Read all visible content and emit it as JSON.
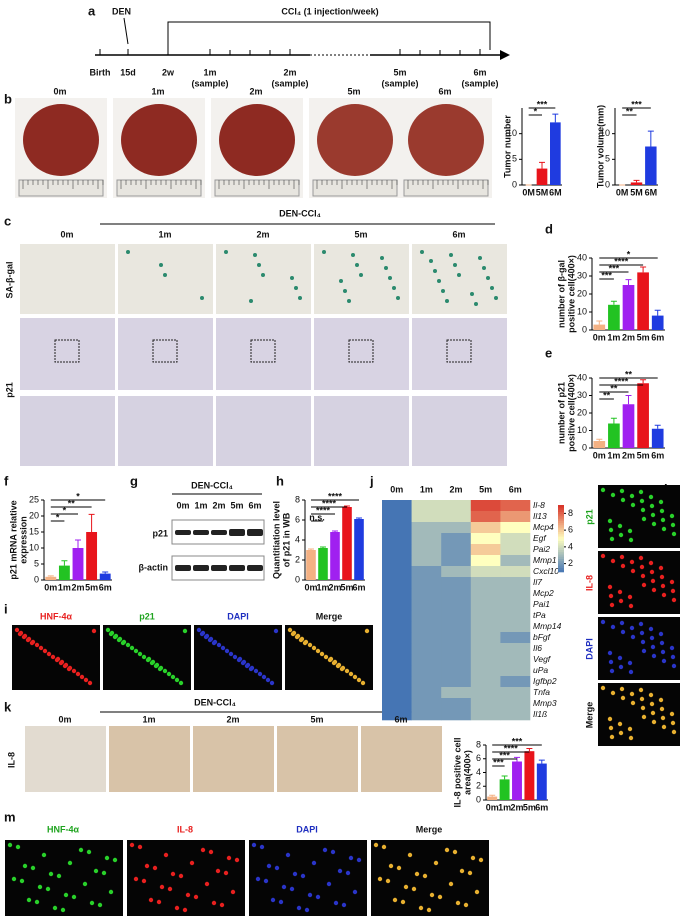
{
  "panel_letters": [
    "a",
    "b",
    "c",
    "d",
    "e",
    "f",
    "g",
    "h",
    "i",
    "j",
    "k",
    "l",
    "m"
  ],
  "timeline": {
    "title": "CCl₄ (1 injection/week)",
    "den": "DEN",
    "points": [
      {
        "time": "Birth"
      },
      {
        "time": "15d"
      },
      {
        "time": "2w"
      },
      {
        "time": "1m",
        "note": "(sample)"
      },
      {
        "time": "2m",
        "note": "(sample)"
      },
      {
        "time": "5m",
        "note": "(sample)"
      },
      {
        "time": "6m",
        "note": "(sample)"
      }
    ]
  },
  "panel_b": {
    "times": [
      "0m",
      "1m",
      "2m",
      "5m",
      "6m"
    ]
  },
  "panel_c": {
    "title": "DEN-CCl₄",
    "times": [
      "0m",
      "1m",
      "2m",
      "5m",
      "6m"
    ],
    "rows": [
      "SA-β-gal",
      "p21"
    ]
  },
  "panel_g": {
    "title": "DEN-CCl₄",
    "lanes": [
      "0m",
      "1m",
      "2m",
      "5m",
      "6m"
    ],
    "rows": [
      "p21",
      "β-actin"
    ]
  },
  "panel_i": {
    "labels": [
      "HNF-4α",
      "p21",
      "DAPI",
      "Merge"
    ]
  },
  "panel_k": {
    "title": "DEN-CCl₄",
    "times": [
      "0m",
      "1m",
      "2m",
      "5m",
      "6m"
    ],
    "row": "IL-8"
  },
  "panel_l": {
    "labels": [
      "p21",
      "IL-8",
      "DAPI",
      "Merge"
    ]
  },
  "panel_m": {
    "labels": [
      "HNF-4α",
      "IL-8",
      "DAPI",
      "Merge"
    ]
  },
  "chart_data": [
    {
      "type": "bar",
      "ylabel": [
        "Tumor number"
      ],
      "categories": [
        "0M",
        "5M",
        "6M"
      ],
      "values": [
        0,
        3.2,
        12.2
      ],
      "errors": [
        0,
        1.2,
        1.6
      ],
      "colors": [
        "#f4b183",
        "#e8141b",
        "#1f3be0"
      ],
      "ylim": [
        0,
        15
      ],
      "yticks": [
        0,
        5,
        10
      ],
      "annotations": [
        "*",
        "***"
      ]
    },
    {
      "type": "bar",
      "ylabel": [
        "Tumor volume(mm)"
      ],
      "categories": [
        "0M",
        "5M",
        "6M"
      ],
      "values": [
        0,
        0.5,
        7.5
      ],
      "errors": [
        0,
        0.4,
        3
      ],
      "colors": [
        "#f4b183",
        "#e8141b",
        "#1f3be0"
      ],
      "ylim": [
        0,
        15
      ],
      "yticks": [
        0,
        5,
        10
      ],
      "annotations": [
        "**",
        "***"
      ]
    },
    {
      "type": "bar",
      "ylabel": [
        "number of β-gal",
        "positive cell(400×)"
      ],
      "categories": [
        "0m",
        "1m",
        "2m",
        "5m",
        "6m"
      ],
      "values": [
        3,
        14,
        25,
        32,
        8
      ],
      "errors": [
        2,
        2,
        3,
        3,
        3
      ],
      "colors": [
        "#f4b183",
        "#22c322",
        "#a020f0",
        "#e8141b",
        "#1f3be0"
      ],
      "ylim": [
        0,
        40
      ],
      "yticks": [
        0,
        10,
        20,
        30,
        40
      ],
      "annotations": [
        "***",
        "***",
        "****",
        "*"
      ]
    },
    {
      "type": "bar",
      "ylabel": [
        "number of p21",
        "positive cell(400×)"
      ],
      "categories": [
        "0m",
        "1m",
        "2m",
        "5m",
        "6m"
      ],
      "values": [
        4,
        14,
        25,
        37,
        11
      ],
      "errors": [
        1,
        3,
        5,
        2,
        2
      ],
      "colors": [
        "#f4b183",
        "#22c322",
        "#a020f0",
        "#e8141b",
        "#1f3be0"
      ],
      "ylim": [
        0,
        40
      ],
      "yticks": [
        0,
        10,
        20,
        30,
        40
      ],
      "annotations": [
        "**",
        "**",
        "****",
        "**"
      ]
    },
    {
      "type": "bar",
      "ylabel": [
        "p21 mRNA relative",
        "expression"
      ],
      "categories": [
        "0m",
        "1m",
        "2m",
        "5m",
        "6m"
      ],
      "values": [
        1,
        4.5,
        10,
        15,
        2
      ],
      "errors": [
        0.3,
        1.5,
        2.5,
        5.5,
        0.5
      ],
      "colors": [
        "#f4b183",
        "#22c322",
        "#a020f0",
        "#e8141b",
        "#1f3be0"
      ],
      "ylim": [
        0,
        25
      ],
      "yticks": [
        0,
        5,
        10,
        15,
        20,
        25
      ],
      "annotations": [
        "*",
        "*",
        "**",
        "*"
      ]
    },
    {
      "type": "bar",
      "ylabel": [
        "Quantitiation level",
        "of p21 in WB"
      ],
      "categories": [
        "0m",
        "1m",
        "2m",
        "5m",
        "6m"
      ],
      "values": [
        3,
        3.2,
        4.8,
        7.3,
        6.1
      ],
      "errors": [
        0.1,
        0.1,
        0.1,
        0.1,
        0.1
      ],
      "colors": [
        "#f4b183",
        "#22c322",
        "#a020f0",
        "#e8141b",
        "#1f3be0"
      ],
      "ylim": [
        0,
        8
      ],
      "yticks": [
        0,
        2,
        4,
        6,
        8
      ],
      "annotations": [
        "n.s.",
        "****",
        "****",
        "****"
      ]
    },
    {
      "type": "bar",
      "ylabel": [
        "IL-8 positive cell",
        "area(400×)"
      ],
      "categories": [
        "0m",
        "1m",
        "2m",
        "5m",
        "6m"
      ],
      "values": [
        0.5,
        3,
        5.6,
        7.1,
        5.3
      ],
      "errors": [
        0.2,
        0.5,
        0.6,
        0.4,
        0.5
      ],
      "colors": [
        "#f4b183",
        "#22c322",
        "#a020f0",
        "#e8141b",
        "#1f3be0"
      ],
      "ylim": [
        0,
        8
      ],
      "yticks": [
        0,
        2,
        4,
        6,
        8
      ],
      "annotations": [
        "***",
        "***",
        "****",
        "***"
      ]
    },
    {
      "type": "heatmap",
      "columns": [
        "0m",
        "1m",
        "2m",
        "5m",
        "6m"
      ],
      "rows": [
        "Il-8",
        "Il13",
        "Mcp4",
        "Egf",
        "Pai2",
        "Mmp1",
        "Cxcl10",
        "Il7",
        "Mcp2",
        "Pai1",
        "tPa",
        "Mmp14",
        "bFgf",
        "Il6",
        "Vegf",
        "uPa",
        "Igfbp2",
        "Tnfa",
        "Mmp3",
        "Il1ß"
      ],
      "values": [
        [
          1,
          4,
          4,
          8.5,
          8
        ],
        [
          1,
          4,
          4,
          8,
          7
        ],
        [
          1,
          3,
          3,
          6,
          5
        ],
        [
          1,
          3,
          2,
          5,
          4
        ],
        [
          1,
          3,
          2,
          6,
          4
        ],
        [
          1,
          3,
          2,
          5,
          3
        ],
        [
          1,
          2,
          3,
          4,
          4
        ],
        [
          1,
          2,
          2,
          3,
          3
        ],
        [
          1,
          2,
          2,
          3,
          3
        ],
        [
          1,
          2,
          2,
          3,
          3
        ],
        [
          1,
          2,
          2,
          3,
          3
        ],
        [
          1,
          2,
          2,
          3,
          3
        ],
        [
          1,
          2,
          2,
          3,
          2
        ],
        [
          1,
          2,
          2,
          3,
          3
        ],
        [
          1,
          2,
          2,
          3,
          3
        ],
        [
          1,
          2,
          2,
          3,
          3
        ],
        [
          1,
          2,
          2,
          3,
          2
        ],
        [
          1,
          2,
          3,
          3,
          3
        ],
        [
          1,
          2,
          2,
          3,
          3
        ],
        [
          1,
          2,
          2,
          3,
          3
        ]
      ],
      "clim": [
        1,
        9
      ],
      "cticks": [
        2,
        4,
        6,
        8
      ]
    }
  ]
}
